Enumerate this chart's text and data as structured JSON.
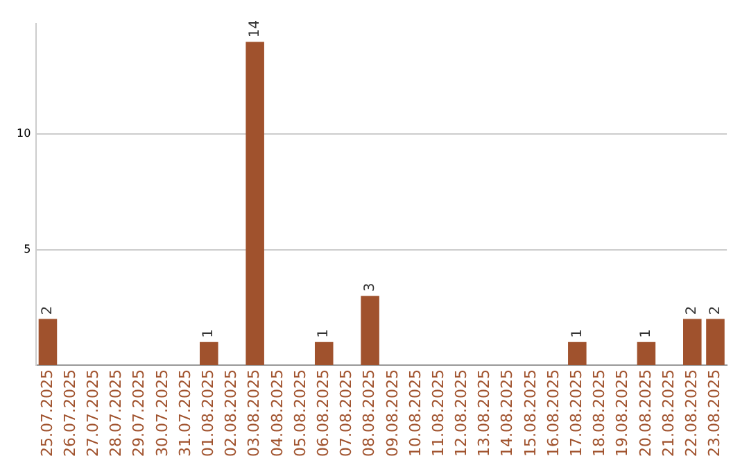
{
  "chart_data": {
    "type": "bar",
    "categories": [
      "25.07.2025",
      "26.07.2025",
      "27.07.2025",
      "28.07.2025",
      "29.07.2025",
      "30.07.2025",
      "31.07.2025",
      "01.08.2025",
      "02.08.2025",
      "03.08.2025",
      "04.08.2025",
      "05.08.2025",
      "06.08.2025",
      "07.08.2025",
      "08.08.2025",
      "09.08.2025",
      "10.08.2025",
      "11.08.2025",
      "12.08.2025",
      "13.08.2025",
      "14.08.2025",
      "15.08.2025",
      "16.08.2025",
      "17.08.2025",
      "18.08.2025",
      "19.08.2025",
      "20.08.2025",
      "21.08.2025",
      "22.08.2025",
      "23.08.2025"
    ],
    "values": [
      2,
      0,
      0,
      0,
      0,
      0,
      0,
      1,
      0,
      14,
      0,
      0,
      1,
      0,
      3,
      0,
      0,
      0,
      0,
      0,
      0,
      0,
      0,
      1,
      0,
      0,
      1,
      0,
      2,
      2
    ],
    "value_labels": [
      "2",
      null,
      null,
      null,
      null,
      null,
      null,
      "1",
      null,
      "14",
      null,
      null,
      "1",
      null,
      "3",
      null,
      null,
      null,
      null,
      null,
      null,
      null,
      null,
      "1",
      null,
      null,
      "1",
      null,
      "2",
      "2"
    ],
    "color": "#a0522d",
    "ylim": [
      0,
      14.8
    ],
    "yticks": [
      5,
      10
    ],
    "grid": "y",
    "legend": false
  }
}
